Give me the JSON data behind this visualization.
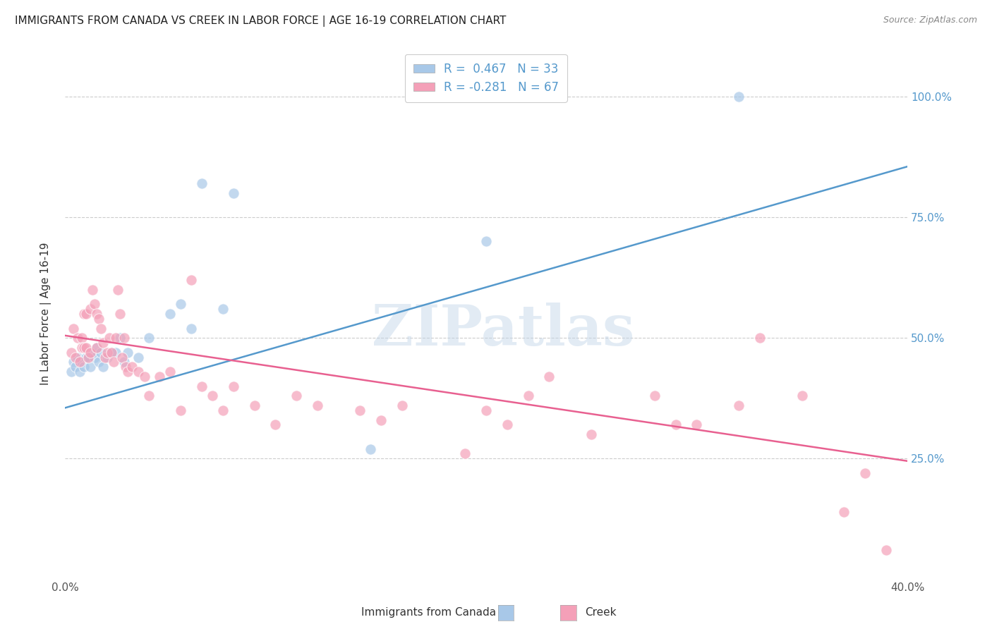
{
  "title": "IMMIGRANTS FROM CANADA VS CREEK IN LABOR FORCE | AGE 16-19 CORRELATION CHART",
  "source": "Source: ZipAtlas.com",
  "ylabel": "In Labor Force | Age 16-19",
  "x_min": 0.0,
  "x_max": 0.4,
  "y_min": 0.0,
  "y_max": 1.1,
  "y_ticks": [
    0.25,
    0.5,
    0.75,
    1.0
  ],
  "y_tick_labels": [
    "25.0%",
    "50.0%",
    "75.0%",
    "100.0%"
  ],
  "x_ticks": [
    0.0,
    0.4
  ],
  "x_tick_labels": [
    "0.0%",
    "40.0%"
  ],
  "watermark": "ZIPatlas",
  "legend_line1": "R =  0.467   N = 33",
  "legend_line2": "R = -0.281   N = 67",
  "blue_scatter_color": "#a8c8e8",
  "pink_scatter_color": "#f4a0b8",
  "blue_line_color": "#5599cc",
  "pink_line_color": "#e86090",
  "background_color": "#ffffff",
  "grid_color": "#cccccc",
  "blue_line_y0": 0.355,
  "blue_line_y1": 0.855,
  "pink_line_y0": 0.505,
  "pink_line_y1": 0.245,
  "canada_x": [
    0.003,
    0.004,
    0.005,
    0.006,
    0.007,
    0.008,
    0.009,
    0.01,
    0.011,
    0.012,
    0.013,
    0.014,
    0.015,
    0.016,
    0.017,
    0.018,
    0.02,
    0.022,
    0.024,
    0.026,
    0.028,
    0.03,
    0.035,
    0.04,
    0.05,
    0.055,
    0.06,
    0.065,
    0.075,
    0.08,
    0.145,
    0.2,
    0.32
  ],
  "canada_y": [
    0.43,
    0.45,
    0.44,
    0.46,
    0.43,
    0.45,
    0.44,
    0.46,
    0.46,
    0.44,
    0.47,
    0.46,
    0.48,
    0.45,
    0.47,
    0.44,
    0.46,
    0.47,
    0.47,
    0.5,
    0.45,
    0.47,
    0.46,
    0.5,
    0.55,
    0.57,
    0.52,
    0.82,
    0.56,
    0.8,
    0.27,
    0.7,
    1.0
  ],
  "creek_x": [
    0.003,
    0.004,
    0.005,
    0.006,
    0.007,
    0.008,
    0.008,
    0.009,
    0.009,
    0.01,
    0.01,
    0.011,
    0.012,
    0.012,
    0.013,
    0.014,
    0.015,
    0.015,
    0.016,
    0.017,
    0.018,
    0.019,
    0.02,
    0.021,
    0.022,
    0.023,
    0.024,
    0.025,
    0.026,
    0.027,
    0.028,
    0.029,
    0.03,
    0.032,
    0.035,
    0.038,
    0.04,
    0.045,
    0.05,
    0.055,
    0.06,
    0.065,
    0.07,
    0.075,
    0.08,
    0.09,
    0.1,
    0.11,
    0.12,
    0.14,
    0.15,
    0.16,
    0.19,
    0.2,
    0.21,
    0.22,
    0.23,
    0.25,
    0.28,
    0.29,
    0.3,
    0.32,
    0.33,
    0.35,
    0.37,
    0.38,
    0.39
  ],
  "creek_y": [
    0.47,
    0.52,
    0.46,
    0.5,
    0.45,
    0.5,
    0.48,
    0.55,
    0.48,
    0.48,
    0.55,
    0.46,
    0.56,
    0.47,
    0.6,
    0.57,
    0.55,
    0.48,
    0.54,
    0.52,
    0.49,
    0.46,
    0.47,
    0.5,
    0.47,
    0.45,
    0.5,
    0.6,
    0.55,
    0.46,
    0.5,
    0.44,
    0.43,
    0.44,
    0.43,
    0.42,
    0.38,
    0.42,
    0.43,
    0.35,
    0.62,
    0.4,
    0.38,
    0.35,
    0.4,
    0.36,
    0.32,
    0.38,
    0.36,
    0.35,
    0.33,
    0.36,
    0.26,
    0.35,
    0.32,
    0.38,
    0.42,
    0.3,
    0.38,
    0.32,
    0.32,
    0.36,
    0.5,
    0.38,
    0.14,
    0.22,
    0.06
  ]
}
